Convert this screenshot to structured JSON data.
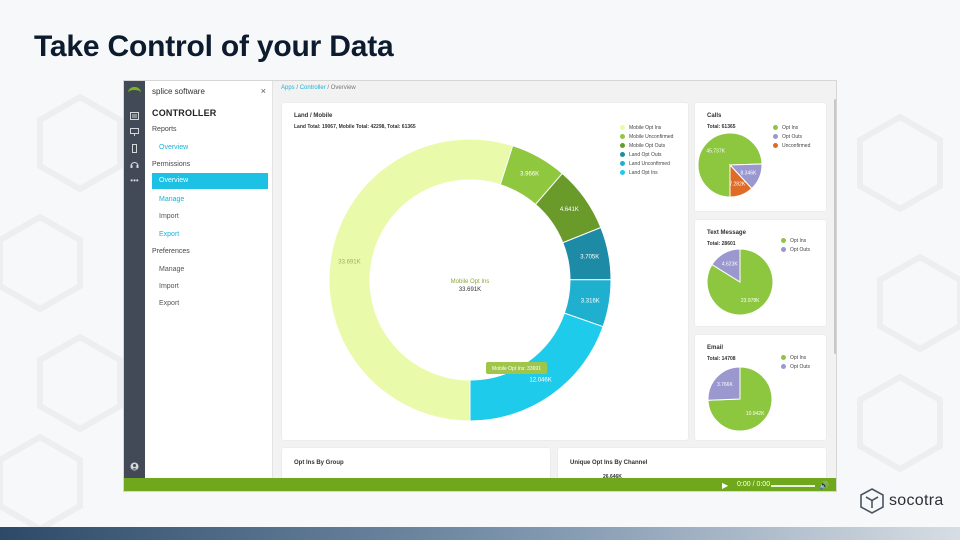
{
  "slide": {
    "title": "Take Control of your Data"
  },
  "app": {
    "brand": "splice software",
    "close_glyph": "×",
    "sidebar": {
      "heading": "CONTROLLER",
      "items": [
        {
          "label": "Reports"
        },
        {
          "label": "Overview"
        },
        {
          "label": "Permissions"
        },
        {
          "label": "Overview"
        },
        {
          "label": "Manage"
        },
        {
          "label": "Import"
        },
        {
          "label": "Export"
        },
        {
          "label": "Preferences"
        },
        {
          "label": "Manage"
        },
        {
          "label": "Import"
        },
        {
          "label": "Export"
        }
      ]
    },
    "breadcrumb": {
      "apps": "Apps",
      "controller": "Controller",
      "current": "Overview",
      "sep": "/"
    },
    "rail_icons": [
      "list-icon",
      "monitor-icon",
      "mobile-icon",
      "headset-icon",
      "more-icon",
      "user-icon"
    ]
  },
  "chart_data": [
    {
      "type": "donut",
      "title": "Land / Mobile",
      "subtitle": "Land Total: 19067, Mobile Total: 42298, Total: 61365",
      "series": [
        {
          "name": "Mobile Opt Ins",
          "value": 33691,
          "label": "33.691K",
          "color": "#e9fbaa"
        },
        {
          "name": "Mobile Unconfirmed",
          "value": 3966,
          "label": "3.966K",
          "color": "#8fc73e"
        },
        {
          "name": "Mobile Opt Outs",
          "value": 4641,
          "label": "4.641K",
          "color": "#6a9a2a"
        },
        {
          "name": "Land Opt Outs",
          "value": 3705,
          "label": "3.705K",
          "color": "#1d8aa6"
        },
        {
          "name": "Land Unconfirmed",
          "value": 3316,
          "label": "3.316K",
          "color": "#1fb0cf"
        },
        {
          "name": "Land Opt Ins",
          "value": 12046,
          "label": "12.046K",
          "color": "#1ecbeb"
        }
      ],
      "center_label": "Mobile Opt Ins",
      "center_value": "33.691K",
      "tooltip": "Mobile Opt Ins: 33691"
    },
    {
      "type": "pie",
      "title": "Calls",
      "subtitle": "Total: 61365",
      "series": [
        {
          "name": "Opt Ins",
          "value": 45737,
          "label": "45.737K",
          "color": "#8dc63f"
        },
        {
          "name": "Opt Outs",
          "value": 8346,
          "label": "8.346K",
          "color": "#9b97cf"
        },
        {
          "name": "Unconfirmed",
          "value": 7282,
          "label": "7.282K",
          "color": "#e06b25"
        }
      ]
    },
    {
      "type": "pie",
      "title": "Text Message",
      "subtitle": "Total: 28601",
      "series": [
        {
          "name": "Opt Ins",
          "value": 23978,
          "label": "23.978K",
          "color": "#8dc63f"
        },
        {
          "name": "Opt Outs",
          "value": 4623,
          "label": "4.623K",
          "color": "#9b97cf"
        }
      ]
    },
    {
      "type": "pie",
      "title": "Email",
      "subtitle": "Total: 14708",
      "series": [
        {
          "name": "Opt Ins",
          "value": 10942,
          "label": "10.942K",
          "color": "#8dc63f"
        },
        {
          "name": "Opt Outs",
          "value": 3766,
          "label": "3.766K",
          "color": "#9b97cf"
        }
      ]
    }
  ],
  "bottom_cards": {
    "left_title": "Opt Ins By Group",
    "right_title": "Unique Opt Ins By Channel",
    "right_peek": "26.646K"
  },
  "player": {
    "time": "0:00 / 0:00",
    "play_icon": "play-icon",
    "volume_icon": "volume-icon"
  },
  "footer": {
    "logo_text": "socotra",
    "logo_icon": "socotra-logo-icon"
  }
}
